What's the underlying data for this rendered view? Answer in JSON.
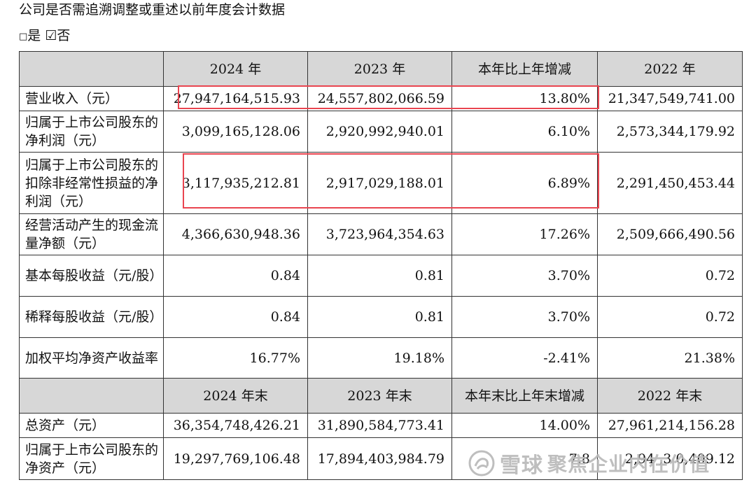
{
  "intro": "公司是否需追溯调整或重述以前年度会计数据",
  "choice": {
    "yes_box": "□",
    "yes_label": "是",
    "no_box": "☑",
    "no_label": "否"
  },
  "header1": [
    "",
    "2024 年",
    "2023 年",
    "本年比上年增减",
    "2022 年"
  ],
  "rows1": [
    {
      "label": "营业收入（元）",
      "values": [
        "27,947,164,515.93",
        "24,557,802,066.59",
        "13.80%",
        "21,347,549,741.00"
      ]
    },
    {
      "label": "归属于上市公司股东的净利润（元）",
      "values": [
        "3,099,165,128.06",
        "2,920,992,940.01",
        "6.10%",
        "2,573,344,179.92"
      ]
    },
    {
      "label": "归属于上市公司股东的扣除非经常性损益的净利润（元）",
      "values": [
        "3,117,935,212.81",
        "2,917,029,188.01",
        "6.89%",
        "2,291,450,453.44"
      ]
    },
    {
      "label": "经营活动产生的现金流量净额（元）",
      "values": [
        "4,366,630,948.36",
        "3,723,964,354.63",
        "17.26%",
        "2,509,666,490.56"
      ]
    },
    {
      "label": "基本每股收益（元/股）",
      "values": [
        "0.84",
        "0.81",
        "3.70%",
        "0.72"
      ]
    },
    {
      "label": "稀释每股收益（元/股）",
      "values": [
        "0.84",
        "0.81",
        "3.70%",
        "0.72"
      ]
    },
    {
      "label": "加权平均净资产收益率",
      "values": [
        "16.77%",
        "19.18%",
        "-2.41%",
        "21.38%"
      ]
    }
  ],
  "header2": [
    "",
    "2024 年末",
    "2023 年末",
    "本年末比上年末增减",
    "2022 年末"
  ],
  "rows2": [
    {
      "label": "总资产（元）",
      "values": [
        "36,354,748,426.21",
        "31,890,584,773.41",
        "14.00%",
        "27,961,214,156.28"
      ]
    },
    {
      "label": "归属于上市公司股东的净资产（元）",
      "values": [
        "19,297,769,106.48",
        "17,894,403,984.79",
        "7.8",
        "2,94 ,3 0,409.12"
      ]
    }
  ],
  "watermark": {
    "brand": "雪球",
    "slogan": "聚焦企业内在价值"
  },
  "colors": {
    "header_bg": "#d7d7d7",
    "highlight": "#e94550",
    "border": "#333333"
  }
}
